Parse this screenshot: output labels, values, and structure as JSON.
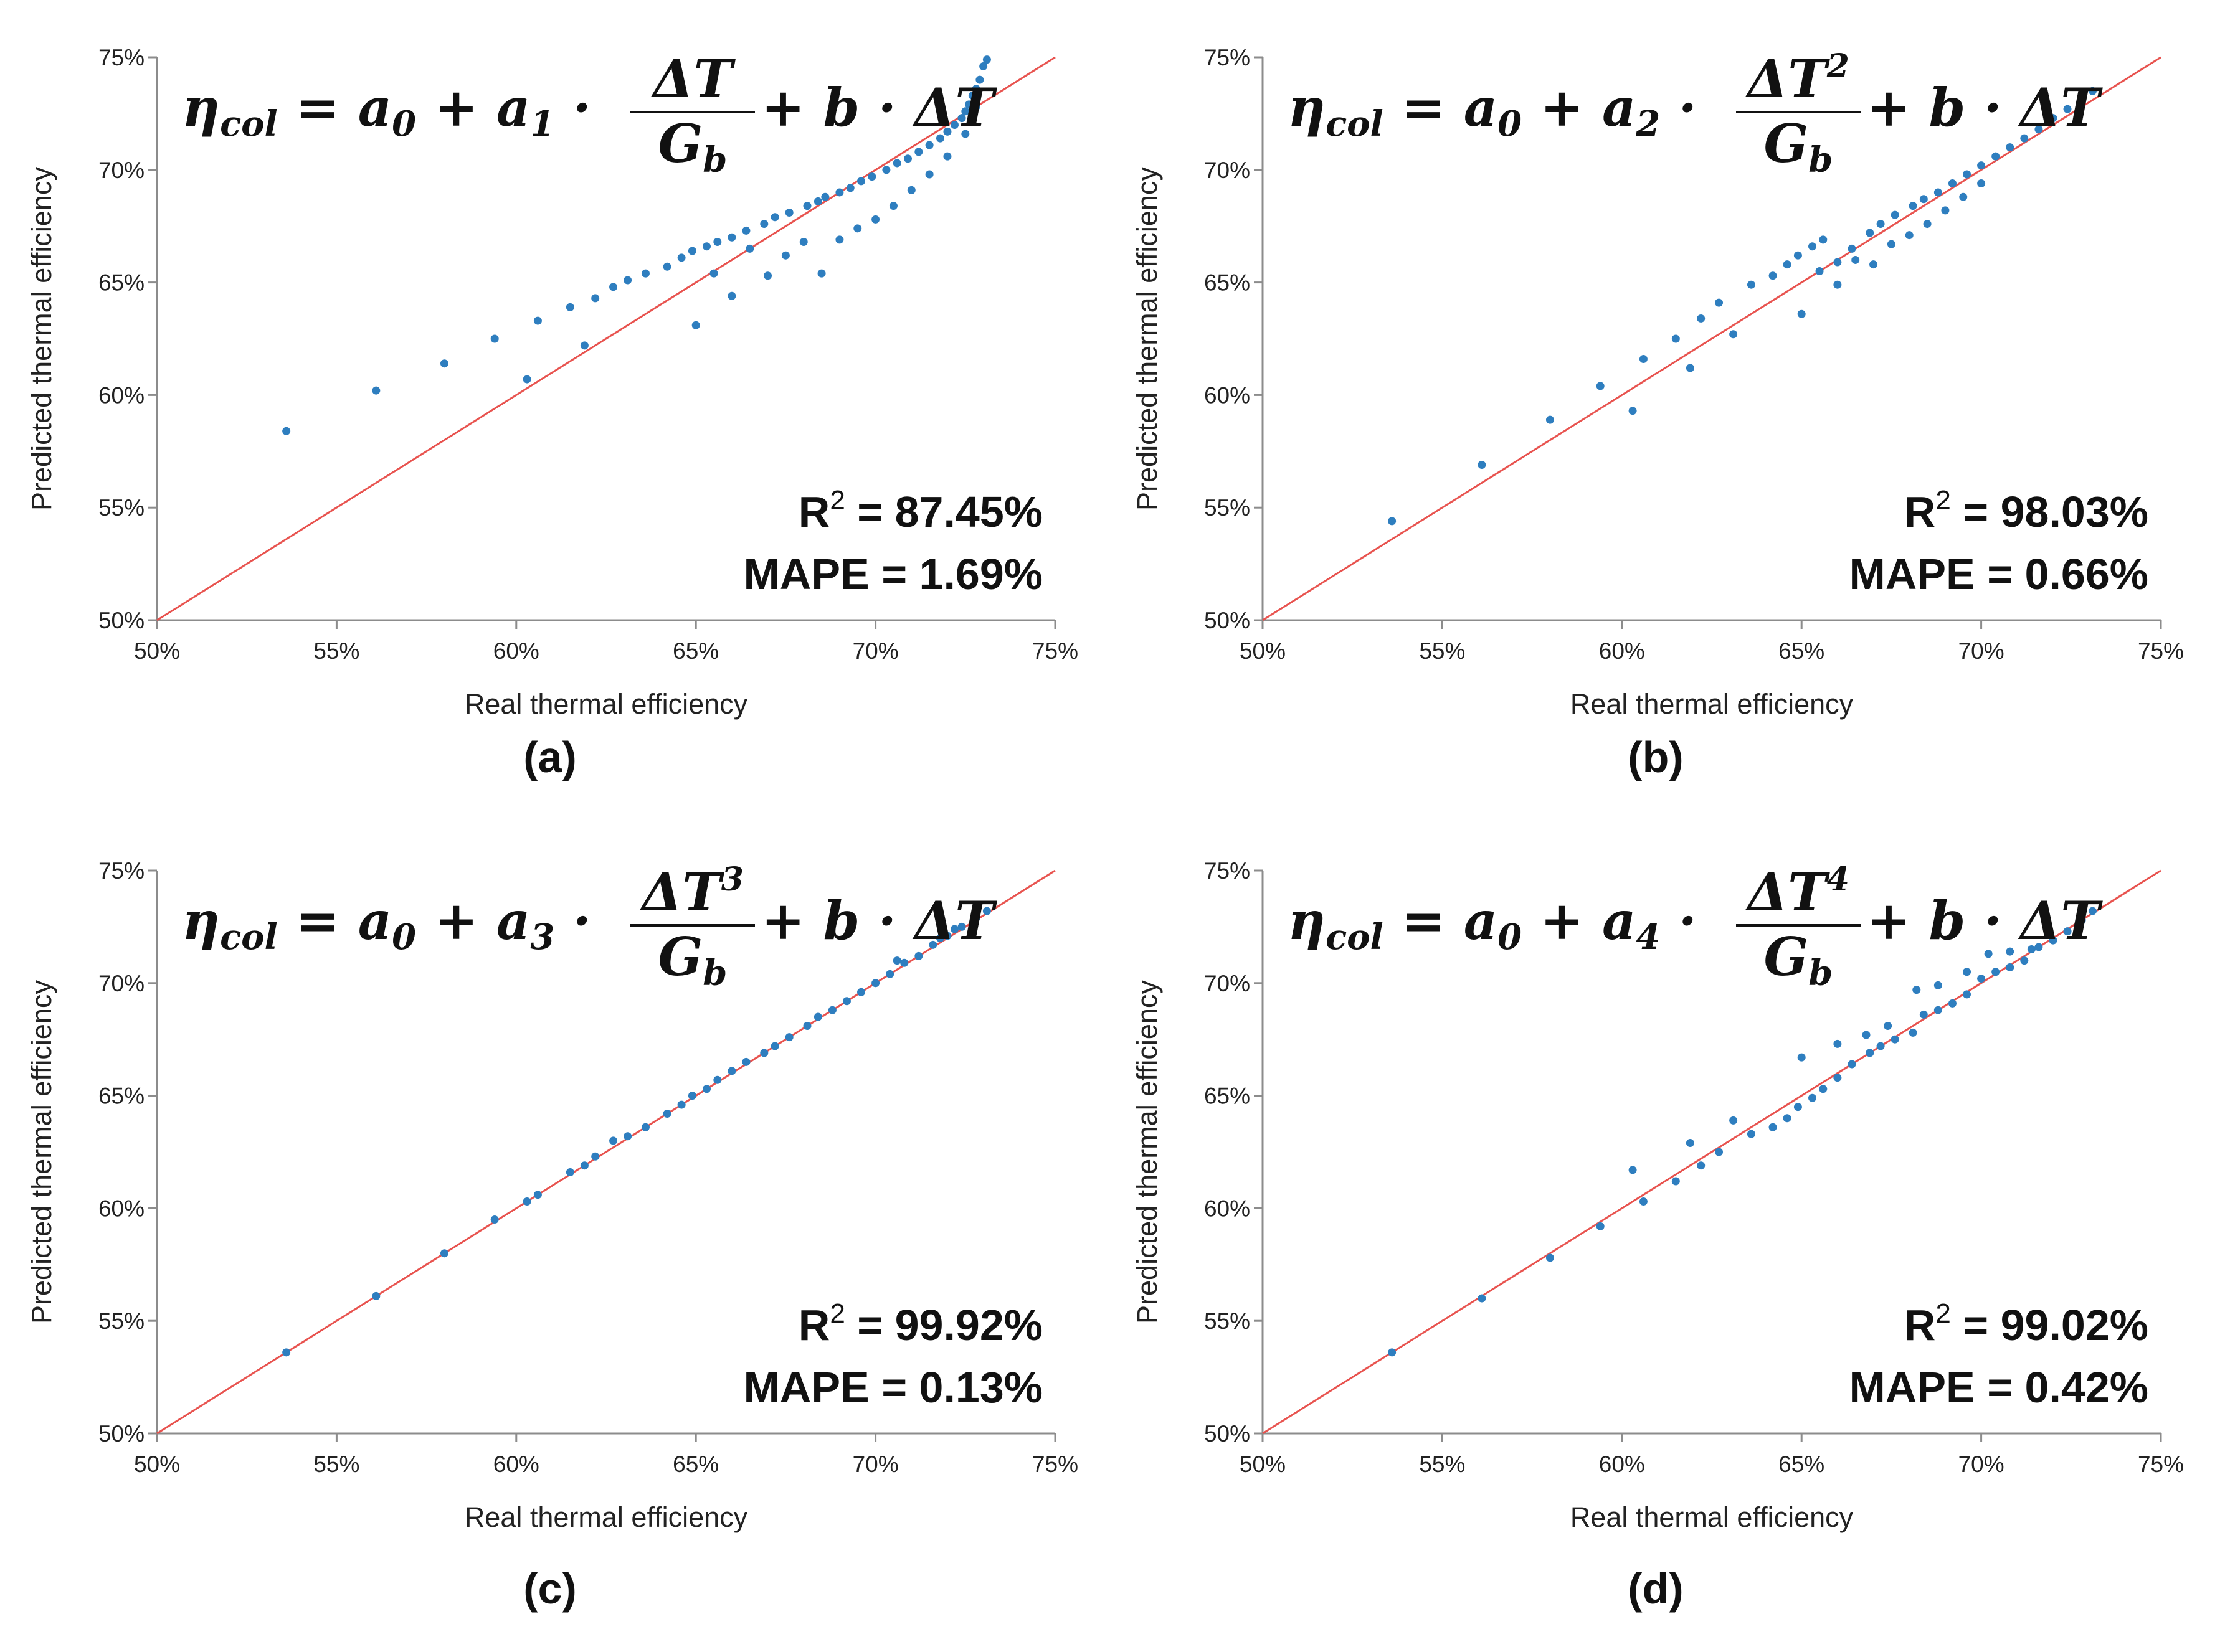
{
  "chart_data": [
    {
      "id": "a",
      "type": "scatter",
      "caption": "(a)",
      "xlabel": "Real thermal efficiency",
      "ylabel": "Predicted thermal efficiency",
      "xlim": [
        50,
        75
      ],
      "ylim": [
        50,
        75
      ],
      "xticks": [
        "50%",
        "55%",
        "60%",
        "65%",
        "70%",
        "75%"
      ],
      "yticks": [
        "50%",
        "55%",
        "60%",
        "65%",
        "70%",
        "75%"
      ],
      "equation": {
        "lhs": "η",
        "lhs_sub": "col",
        "eq": "= ",
        "a0": "a",
        "a0_sub": "0",
        "plus1": " + ",
        "a": "a",
        "a_sub": "1",
        "dot": " · ",
        "num": "ΔT",
        "num_sup": "",
        "den": "G",
        "den_sub": "b",
        "rest": " + b · ΔT"
      },
      "r2_label": "R",
      "r2_sup": "2",
      "r2_value": " = 87.45%",
      "mape": "MAPE = 1.69%",
      "reference_line": {
        "from": [
          50,
          50
        ],
        "to": [
          75,
          75
        ],
        "color": "#e8534f"
      },
      "point_color": "#2e7ebf",
      "x": [
        53.6,
        56.1,
        58.0,
        59.4,
        60.3,
        60.6,
        61.5,
        61.9,
        62.2,
        62.7,
        63.1,
        63.6,
        64.2,
        64.6,
        64.9,
        65.3,
        65.6,
        66.0,
        66.4,
        66.9,
        67.2,
        67.6,
        68.1,
        68.4,
        68.6,
        69.0,
        69.3,
        69.6,
        69.9,
        70.3,
        70.6,
        70.9,
        71.2,
        71.5,
        71.8,
        72.0,
        72.2,
        72.4,
        72.5,
        72.6,
        72.7,
        72.8,
        72.9,
        73.0,
        73.1,
        65.0,
        65.5,
        66.0,
        66.5,
        67.0,
        67.5,
        68.0,
        68.5,
        69.0,
        69.5,
        70.0,
        70.5,
        71.0,
        71.5,
        72.0,
        72.5,
        72.8
      ],
      "y": [
        58.4,
        60.2,
        61.4,
        62.5,
        60.7,
        63.3,
        63.9,
        62.2,
        64.3,
        64.8,
        65.1,
        65.4,
        65.7,
        66.1,
        66.4,
        66.6,
        66.8,
        67.0,
        67.3,
        67.6,
        67.9,
        68.1,
        68.4,
        68.6,
        68.8,
        69.0,
        69.2,
        69.5,
        69.7,
        70.0,
        70.3,
        70.5,
        70.8,
        71.1,
        71.4,
        71.7,
        72.0,
        72.3,
        72.6,
        72.9,
        73.3,
        73.6,
        74.0,
        74.6,
        74.9,
        63.1,
        65.4,
        64.4,
        66.5,
        65.3,
        66.2,
        66.8,
        65.4,
        66.9,
        67.4,
        67.8,
        68.4,
        69.1,
        69.8,
        70.6,
        71.6,
        72.8
      ]
    },
    {
      "id": "b",
      "type": "scatter",
      "caption": "(b)",
      "xlabel": "Real thermal efficiency",
      "ylabel": "Predicted thermal efficiency",
      "xlim": [
        50,
        75
      ],
      "ylim": [
        50,
        75
      ],
      "xticks": [
        "50%",
        "55%",
        "60%",
        "65%",
        "70%",
        "75%"
      ],
      "yticks": [
        "50%",
        "55%",
        "60%",
        "65%",
        "70%",
        "75%"
      ],
      "equation": {
        "lhs": "η",
        "lhs_sub": "col",
        "eq": "= ",
        "a0": "a",
        "a0_sub": "0",
        "plus1": " + ",
        "a": "a",
        "a_sub": "2",
        "dot": " · ",
        "num": "ΔT",
        "num_sup": "2",
        "den": "G",
        "den_sub": "b",
        "rest": " + b · ΔT"
      },
      "r2_label": "R",
      "r2_sup": "2",
      "r2_value": " = 98.03%",
      "mape": "MAPE = 0.66%",
      "reference_line": {
        "from": [
          50,
          50
        ],
        "to": [
          75,
          75
        ],
        "color": "#e8534f"
      },
      "point_color": "#2e7ebf",
      "x": [
        53.6,
        56.1,
        58.0,
        59.4,
        60.3,
        60.6,
        61.5,
        61.9,
        62.2,
        62.7,
        63.1,
        63.6,
        64.2,
        64.6,
        64.9,
        65.3,
        65.6,
        66.0,
        66.4,
        66.9,
        67.2,
        67.6,
        68.1,
        68.4,
        68.8,
        69.2,
        69.6,
        70.0,
        70.4,
        70.8,
        71.2,
        71.6,
        72.0,
        72.4,
        72.8,
        73.1,
        65.0,
        65.5,
        66.0,
        66.5,
        67.0,
        67.5,
        68.0,
        68.5,
        69.0,
        69.5,
        70.0
      ],
      "y": [
        54.4,
        56.9,
        58.9,
        60.4,
        59.3,
        61.6,
        62.5,
        61.2,
        63.4,
        64.1,
        62.7,
        64.9,
        65.3,
        65.8,
        66.2,
        66.6,
        66.9,
        65.9,
        66.5,
        67.2,
        67.6,
        68.0,
        68.4,
        68.7,
        69.0,
        69.4,
        69.8,
        70.2,
        70.6,
        71.0,
        71.4,
        71.8,
        72.3,
        72.7,
        73.2,
        73.5,
        63.6,
        65.5,
        64.9,
        66.0,
        65.8,
        66.7,
        67.1,
        67.6,
        68.2,
        68.8,
        69.4
      ]
    },
    {
      "id": "c",
      "type": "scatter",
      "caption": "(c)",
      "xlabel": "Real thermal efficiency",
      "ylabel": "Predicted thermal efficiency",
      "xlim": [
        50,
        75
      ],
      "ylim": [
        50,
        75
      ],
      "xticks": [
        "50%",
        "55%",
        "60%",
        "65%",
        "70%",
        "75%"
      ],
      "yticks": [
        "50%",
        "55%",
        "60%",
        "65%",
        "70%",
        "75%"
      ],
      "equation": {
        "lhs": "η",
        "lhs_sub": "col",
        "eq": "= ",
        "a0": "a",
        "a0_sub": "0",
        "plus1": " + ",
        "a": "a",
        "a_sub": "3",
        "dot": " · ",
        "num": "ΔT",
        "num_sup": "3",
        "den": "G",
        "den_sub": "b",
        "rest": " + b · ΔT"
      },
      "r2_label": "R",
      "r2_sup": "2",
      "r2_value": " = 99.92%",
      "mape": "MAPE = 0.13%",
      "reference_line": {
        "from": [
          50,
          50
        ],
        "to": [
          75,
          75
        ],
        "color": "#e8534f"
      },
      "point_color": "#2e7ebf",
      "x": [
        53.6,
        56.1,
        58.0,
        59.4,
        60.3,
        60.6,
        61.5,
        61.9,
        62.2,
        62.7,
        63.1,
        63.6,
        64.2,
        64.6,
        64.9,
        65.3,
        65.6,
        66.0,
        66.4,
        66.9,
        67.2,
        67.6,
        68.1,
        68.4,
        68.8,
        69.2,
        69.6,
        70.0,
        70.4,
        70.8,
        71.2,
        71.6,
        72.0,
        72.4,
        72.8,
        73.1,
        72.2,
        71.8,
        70.6
      ],
      "y": [
        53.6,
        56.1,
        58.0,
        59.5,
        60.3,
        60.6,
        61.6,
        61.9,
        62.3,
        63.0,
        63.2,
        63.6,
        64.2,
        64.6,
        65.0,
        65.3,
        65.7,
        66.1,
        66.5,
        66.9,
        67.2,
        67.6,
        68.1,
        68.5,
        68.8,
        69.2,
        69.6,
        70.0,
        70.4,
        70.9,
        71.2,
        71.7,
        72.1,
        72.5,
        72.9,
        73.2,
        72.4,
        72.0,
        71.0
      ]
    },
    {
      "id": "d",
      "type": "scatter",
      "caption": "(d)",
      "xlabel": "Real thermal efficiency",
      "ylabel": "Predicted thermal efficiency",
      "xlim": [
        50,
        75
      ],
      "ylim": [
        50,
        75
      ],
      "xticks": [
        "50%",
        "55%",
        "60%",
        "65%",
        "70%",
        "75%"
      ],
      "yticks": [
        "50%",
        "55%",
        "60%",
        "65%",
        "70%",
        "75%"
      ],
      "equation": {
        "lhs": "η",
        "lhs_sub": "col",
        "eq": "= ",
        "a0": "a",
        "a0_sub": "0",
        "plus1": " + ",
        "a": "a",
        "a_sub": "4",
        "dot": " · ",
        "num": "ΔT",
        "num_sup": "4",
        "den": "G",
        "den_sub": "b",
        "rest": " + b · ΔT"
      },
      "r2_label": "R",
      "r2_sup": "2",
      "r2_value": " = 99.02%",
      "mape": "MAPE = 0.42%",
      "reference_line": {
        "from": [
          50,
          50
        ],
        "to": [
          75,
          75
        ],
        "color": "#e8534f"
      },
      "point_color": "#2e7ebf",
      "x": [
        53.6,
        56.1,
        58.0,
        59.4,
        60.3,
        60.6,
        61.5,
        61.9,
        62.2,
        62.7,
        63.1,
        63.6,
        64.2,
        64.6,
        64.9,
        65.3,
        65.6,
        66.0,
        66.4,
        66.9,
        67.2,
        67.6,
        68.1,
        68.4,
        68.8,
        69.2,
        69.6,
        70.0,
        70.4,
        70.8,
        71.2,
        71.6,
        72.0,
        72.4,
        72.8,
        73.1,
        65.0,
        66.0,
        66.8,
        67.4,
        68.2,
        68.8,
        69.6,
        70.2,
        70.8,
        71.4
      ],
      "y": [
        53.6,
        56.0,
        57.8,
        59.2,
        61.7,
        60.3,
        61.2,
        62.9,
        61.9,
        62.5,
        63.9,
        63.3,
        63.6,
        64.0,
        64.5,
        64.9,
        65.3,
        65.8,
        66.4,
        66.9,
        67.2,
        67.5,
        67.8,
        68.6,
        68.8,
        69.1,
        69.5,
        70.2,
        70.5,
        70.7,
        71.0,
        71.6,
        71.9,
        72.3,
        72.8,
        73.2,
        66.7,
        67.3,
        67.7,
        68.1,
        69.7,
        69.9,
        70.5,
        71.3,
        71.4,
        71.5
      ]
    }
  ]
}
